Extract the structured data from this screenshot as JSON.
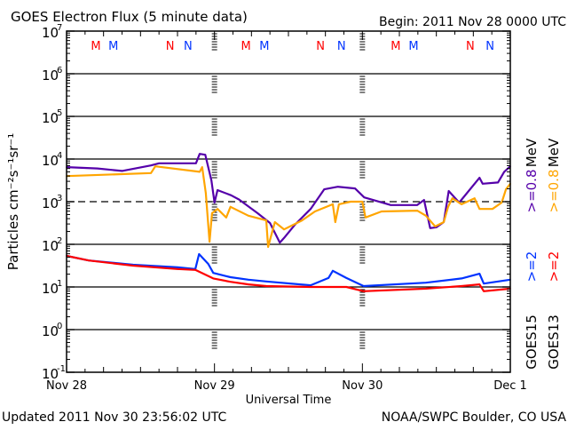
{
  "chart_data": {
    "type": "line",
    "title": "GOES Electron Flux (5 minute data)",
    "begin_label": "Begin: 2011 Nov 28 0000 UTC",
    "xlabel": "Universal Time",
    "ylabel": "Particles cm⁻²s⁻¹sr⁻¹",
    "updated_label": "Updated 2011 Nov 30 23:56:02 UTC",
    "credit_label": "NOAA/SWPC Boulder, CO USA",
    "x_unit": "hours since 2011 Nov 28 0000 UTC",
    "xlim": [
      0,
      72
    ],
    "ylim_log10": [
      -1,
      7
    ],
    "y_scale": "log",
    "x_ticks": [
      {
        "hour": 0,
        "label": "Nov 28"
      },
      {
        "hour": 24,
        "label": "Nov 29"
      },
      {
        "hour": 48,
        "label": "Nov 30"
      },
      {
        "hour": 72,
        "label": "Dec 1"
      }
    ],
    "y_ticks": [
      {
        "exp": 7,
        "base": "10",
        "sup": "7"
      },
      {
        "exp": 6,
        "base": "10",
        "sup": "6"
      },
      {
        "exp": 5,
        "base": "10",
        "sup": "5"
      },
      {
        "exp": 4,
        "base": "10",
        "sup": "4"
      },
      {
        "exp": 3,
        "base": "10",
        "sup": "3"
      },
      {
        "exp": 2,
        "base": "10",
        "sup": "2"
      },
      {
        "exp": 1,
        "base": "10",
        "sup": "1"
      },
      {
        "exp": 0,
        "base": "10",
        "sup": "0"
      },
      {
        "exp": -1,
        "base": "10",
        "sup": "-1"
      }
    ],
    "grid_exps_solid": [
      6,
      5,
      4,
      2,
      1,
      0
    ],
    "threshold_exp_dashed": 3,
    "markers": [
      {
        "label": "M",
        "hour": 4.75,
        "color": "#ff0000"
      },
      {
        "label": "M",
        "hour": 7.6,
        "color": "#0033ff"
      },
      {
        "label": "N",
        "hour": 16.8,
        "color": "#ff0000"
      },
      {
        "label": "N",
        "hour": 19.7,
        "color": "#0033ff"
      },
      {
        "label": "M",
        "hour": 29.1,
        "color": "#ff0000"
      },
      {
        "label": "M",
        "hour": 32.1,
        "color": "#0033ff"
      },
      {
        "label": "N",
        "hour": 41.2,
        "color": "#ff0000"
      },
      {
        "label": "N",
        "hour": 44.6,
        "color": "#0033ff"
      },
      {
        "label": "M",
        "hour": 53.4,
        "color": "#ff0000"
      },
      {
        "label": "M",
        "hour": 56.3,
        "color": "#0033ff"
      },
      {
        "label": "N",
        "hour": 65.5,
        "color": "#ff0000"
      },
      {
        "label": "N",
        "hour": 68.7,
        "color": "#0033ff"
      }
    ],
    "legend": {
      "placement": "right",
      "columns": [
        {
          "satellite": "GOES15",
          "low": ">=2",
          "low_color": "#0033ff",
          "high": ">=0.8",
          "high_color": "#5500aa",
          "unit": "MeV"
        },
        {
          "satellite": "GOES13",
          "low": ">=2",
          "low_color": "#ff0000",
          "high": ">=0.8",
          "high_color": "#ffa500",
          "unit": "MeV"
        }
      ]
    },
    "series": [
      {
        "name": "GOES15 >=0.8 MeV",
        "color": "#5500aa",
        "points_log10": [
          [
            0,
            3.81
          ],
          [
            5,
            3.78
          ],
          [
            9,
            3.72
          ],
          [
            13.7,
            3.85
          ],
          [
            15,
            3.9
          ],
          [
            21,
            3.9
          ],
          [
            21.6,
            4.12
          ],
          [
            22.5,
            4.1
          ],
          [
            23.5,
            3.5
          ],
          [
            24,
            2.98
          ],
          [
            24.5,
            3.27
          ],
          [
            26.7,
            3.15
          ],
          [
            28,
            3.05
          ],
          [
            31,
            2.73
          ],
          [
            33,
            2.5
          ],
          [
            34.6,
            2.04
          ],
          [
            35.3,
            2.15
          ],
          [
            37,
            2.45
          ],
          [
            39.6,
            2.83
          ],
          [
            41.8,
            3.29
          ],
          [
            44,
            3.35
          ],
          [
            46.8,
            3.31
          ],
          [
            48.3,
            3.1
          ],
          [
            52.6,
            2.92
          ],
          [
            56.9,
            2.92
          ],
          [
            58,
            3.04
          ],
          [
            59,
            2.38
          ],
          [
            60,
            2.4
          ],
          [
            61.2,
            2.52
          ],
          [
            62,
            3.25
          ],
          [
            63.7,
            2.98
          ],
          [
            67,
            3.56
          ],
          [
            67.5,
            3.42
          ],
          [
            70,
            3.45
          ],
          [
            71,
            3.7
          ],
          [
            72,
            3.83
          ]
        ]
      },
      {
        "name": "GOES13 >=0.8 MeV",
        "color": "#ffa500",
        "points_log10": [
          [
            0,
            3.6
          ],
          [
            13.7,
            3.67
          ],
          [
            14.4,
            3.83
          ],
          [
            21.6,
            3.7
          ],
          [
            22,
            3.81
          ],
          [
            22.6,
            3.2
          ],
          [
            23.2,
            2.06
          ],
          [
            23.6,
            2.73
          ],
          [
            24.5,
            2.83
          ],
          [
            25.9,
            2.63
          ],
          [
            26.6,
            2.88
          ],
          [
            29.5,
            2.67
          ],
          [
            32.4,
            2.56
          ],
          [
            32.7,
            1.94
          ],
          [
            33.8,
            2.52
          ],
          [
            35.3,
            2.35
          ],
          [
            38.2,
            2.56
          ],
          [
            40.3,
            2.77
          ],
          [
            43.2,
            2.94
          ],
          [
            43.6,
            2.52
          ],
          [
            44.2,
            2.94
          ],
          [
            46.1,
            3.0
          ],
          [
            48,
            3.0
          ],
          [
            48.5,
            2.63
          ],
          [
            51.1,
            2.77
          ],
          [
            56.9,
            2.79
          ],
          [
            58.3,
            2.67
          ],
          [
            59.8,
            2.42
          ],
          [
            61.2,
            2.52
          ],
          [
            61.9,
            2.88
          ],
          [
            62.6,
            3.08
          ],
          [
            64.1,
            2.94
          ],
          [
            66.2,
            3.08
          ],
          [
            67,
            2.83
          ],
          [
            69.1,
            2.83
          ],
          [
            70.6,
            2.98
          ],
          [
            71.3,
            3.29
          ],
          [
            72,
            3.42
          ]
        ]
      },
      {
        "name": "GOES15 >=2 MeV",
        "color": "#0033ff",
        "points_log10": [
          [
            0,
            1.73
          ],
          [
            3.6,
            1.62
          ],
          [
            10.8,
            1.52
          ],
          [
            18,
            1.46
          ],
          [
            20.9,
            1.42
          ],
          [
            21.5,
            1.77
          ],
          [
            23,
            1.54
          ],
          [
            23.8,
            1.33
          ],
          [
            26.6,
            1.23
          ],
          [
            29.5,
            1.17
          ],
          [
            32.4,
            1.13
          ],
          [
            39.6,
            1.04
          ],
          [
            42.5,
            1.21
          ],
          [
            43.2,
            1.38
          ],
          [
            45.4,
            1.21
          ],
          [
            48.2,
            1.02
          ],
          [
            58.3,
            1.1
          ],
          [
            64.1,
            1.2
          ],
          [
            67,
            1.31
          ],
          [
            67.7,
            1.08
          ],
          [
            72,
            1.17
          ]
        ]
      },
      {
        "name": "GOES13 >=2 MeV",
        "color": "#ff0000",
        "points_log10": [
          [
            0,
            1.73
          ],
          [
            3.6,
            1.62
          ],
          [
            10.8,
            1.5
          ],
          [
            18,
            1.42
          ],
          [
            20.9,
            1.4
          ],
          [
            23.8,
            1.2
          ],
          [
            26.6,
            1.12
          ],
          [
            29.5,
            1.06
          ],
          [
            32.4,
            1.02
          ],
          [
            39.6,
            1.0
          ],
          [
            45.4,
            1.0
          ],
          [
            48.2,
            0.9
          ],
          [
            58.3,
            0.96
          ],
          [
            64.1,
            1.02
          ],
          [
            67,
            1.06
          ],
          [
            67.7,
            0.9
          ],
          [
            72,
            0.96
          ]
        ]
      }
    ]
  }
}
